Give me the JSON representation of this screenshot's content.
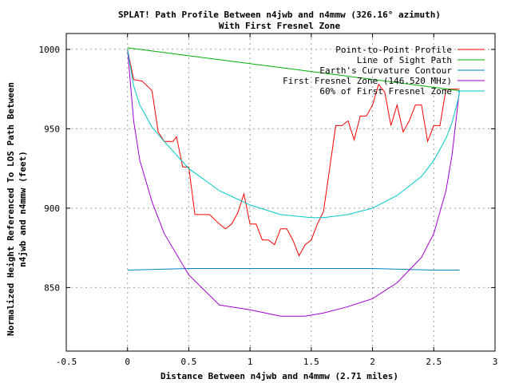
{
  "chart_data": {
    "type": "line",
    "title": "SPLAT! Path Profile Between n4jwb and n4mmw (326.16° azimuth)",
    "subtitle": "With First Fresnel Zone",
    "xlabel": "Distance Between n4jwb and n4mmw (2.71 miles)",
    "ylabel_line1": "Normalized Height Referenced To LOS Path Between",
    "ylabel_line2": "n4jwb and n4mmw (feet)",
    "xlim": [
      -0.5,
      3
    ],
    "ylim": [
      810,
      1010
    ],
    "xticks": [
      -0.5,
      0,
      0.5,
      1,
      1.5,
      2,
      2.5,
      3
    ],
    "xtick_labels": [
      "-0.5",
      "0",
      "0.5",
      "1",
      "1.5",
      "2",
      "2.5",
      "3"
    ],
    "yticks": [
      850,
      900,
      950,
      1000
    ],
    "ytick_labels": [
      "850",
      "900",
      "950",
      "1000"
    ],
    "grid": true,
    "legend_position": "top-right",
    "series": [
      {
        "name": "Point-to-Point Profile",
        "color": "#ff0000",
        "x": [
          0,
          0.05,
          0.12,
          0.2,
          0.25,
          0.3,
          0.37,
          0.4,
          0.45,
          0.5,
          0.55,
          0.6,
          0.67,
          0.75,
          0.8,
          0.85,
          0.9,
          0.95,
          1.0,
          1.05,
          1.1,
          1.15,
          1.2,
          1.25,
          1.3,
          1.35,
          1.4,
          1.45,
          1.5,
          1.55,
          1.6,
          1.7,
          1.75,
          1.8,
          1.85,
          1.9,
          1.95,
          2.0,
          2.05,
          2.1,
          2.15,
          2.2,
          2.25,
          2.3,
          2.35,
          2.4,
          2.45,
          2.5,
          2.55,
          2.6,
          2.65,
          2.71
        ],
        "y": [
          1000,
          981,
          980,
          974,
          948,
          942,
          942,
          945,
          926,
          926,
          896,
          896,
          896,
          890,
          887,
          890,
          897,
          909,
          890,
          890,
          880,
          880,
          877,
          887,
          887,
          880,
          870,
          877,
          880,
          890,
          898,
          952,
          952,
          955,
          943,
          958,
          958,
          965,
          978,
          973,
          952,
          965,
          948,
          955,
          965,
          965,
          942,
          952,
          952,
          975,
          975,
          975
        ]
      },
      {
        "name": "Line of Sight Path",
        "color": "#00b000",
        "x": [
          0,
          2.71
        ],
        "y": [
          1001,
          974
        ]
      },
      {
        "name": "Earth's Curvature Contour",
        "color": "#0080c0",
        "x": [
          0,
          0.5,
          1.0,
          1.5,
          2.0,
          2.5,
          2.71
        ],
        "y": [
          861,
          862,
          862,
          862,
          862,
          861,
          861
        ]
      },
      {
        "name": "First Fresnel Zone (146.520 MHz)",
        "color": "#a000d0",
        "x": [
          0,
          0.05,
          0.1,
          0.2,
          0.3,
          0.5,
          0.75,
          1.0,
          1.25,
          1.45,
          1.6,
          1.8,
          2.0,
          2.2,
          2.4,
          2.5,
          2.6,
          2.65,
          2.7,
          2.71
        ],
        "y": [
          1000,
          955,
          930,
          904,
          884,
          858,
          839,
          836,
          832,
          832,
          834,
          838,
          843,
          853,
          869,
          884,
          911,
          934,
          968,
          974
        ]
      },
      {
        "name": "60% of First Fresnel Zone",
        "color": "#00c8c8",
        "x": [
          0,
          0.05,
          0.1,
          0.2,
          0.3,
          0.5,
          0.75,
          1.0,
          1.25,
          1.5,
          1.6,
          1.8,
          2.0,
          2.2,
          2.4,
          2.5,
          2.6,
          2.65,
          2.7,
          2.71
        ],
        "y": [
          1000,
          977,
          965,
          951,
          942,
          925,
          911,
          902,
          896,
          894,
          894,
          896,
          900,
          908,
          920,
          930,
          944,
          954,
          969,
          974
        ]
      }
    ]
  }
}
